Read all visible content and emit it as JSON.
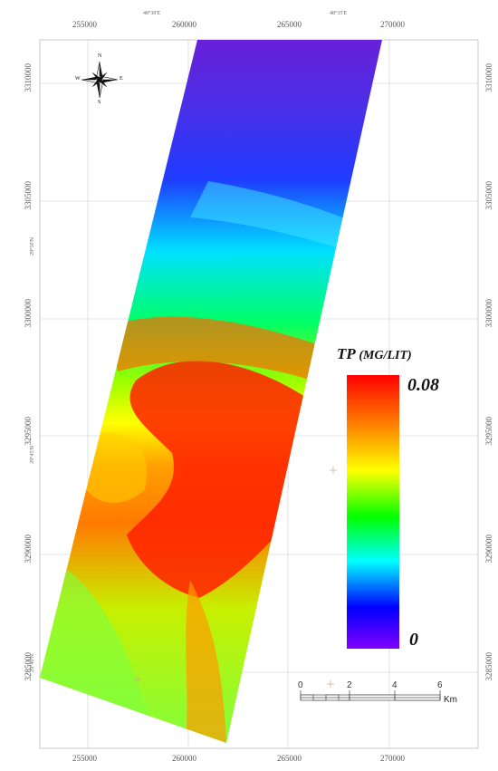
{
  "map": {
    "north_arrow": {
      "n": "N",
      "s": "S",
      "e": "E",
      "w": "W"
    },
    "x_ticks_top": [
      "255000",
      "260000",
      "265000",
      "270000"
    ],
    "x_ticks_bottom": [
      "255000",
      "260000",
      "265000",
      "270000"
    ],
    "y_ticks": [
      "3310000",
      "3305000",
      "3300000",
      "3295000",
      "3290000",
      "3285000"
    ],
    "lon_labels": [
      "48°30'E",
      "48°35'E"
    ],
    "lat_labels": [
      "29°50'N",
      "29°45'N",
      "29°40'N"
    ]
  },
  "legend": {
    "title": "TP",
    "unit": "(MG/LIT)",
    "max": "0.08",
    "min": "0",
    "colors": [
      "#ff0000",
      "#ff8000",
      "#ffff00",
      "#00ff00",
      "#00ffff",
      "#0000ff",
      "#8000ff"
    ]
  },
  "scalebar": {
    "labels": [
      "0",
      "2",
      "4",
      "6"
    ],
    "unit": "Km"
  }
}
